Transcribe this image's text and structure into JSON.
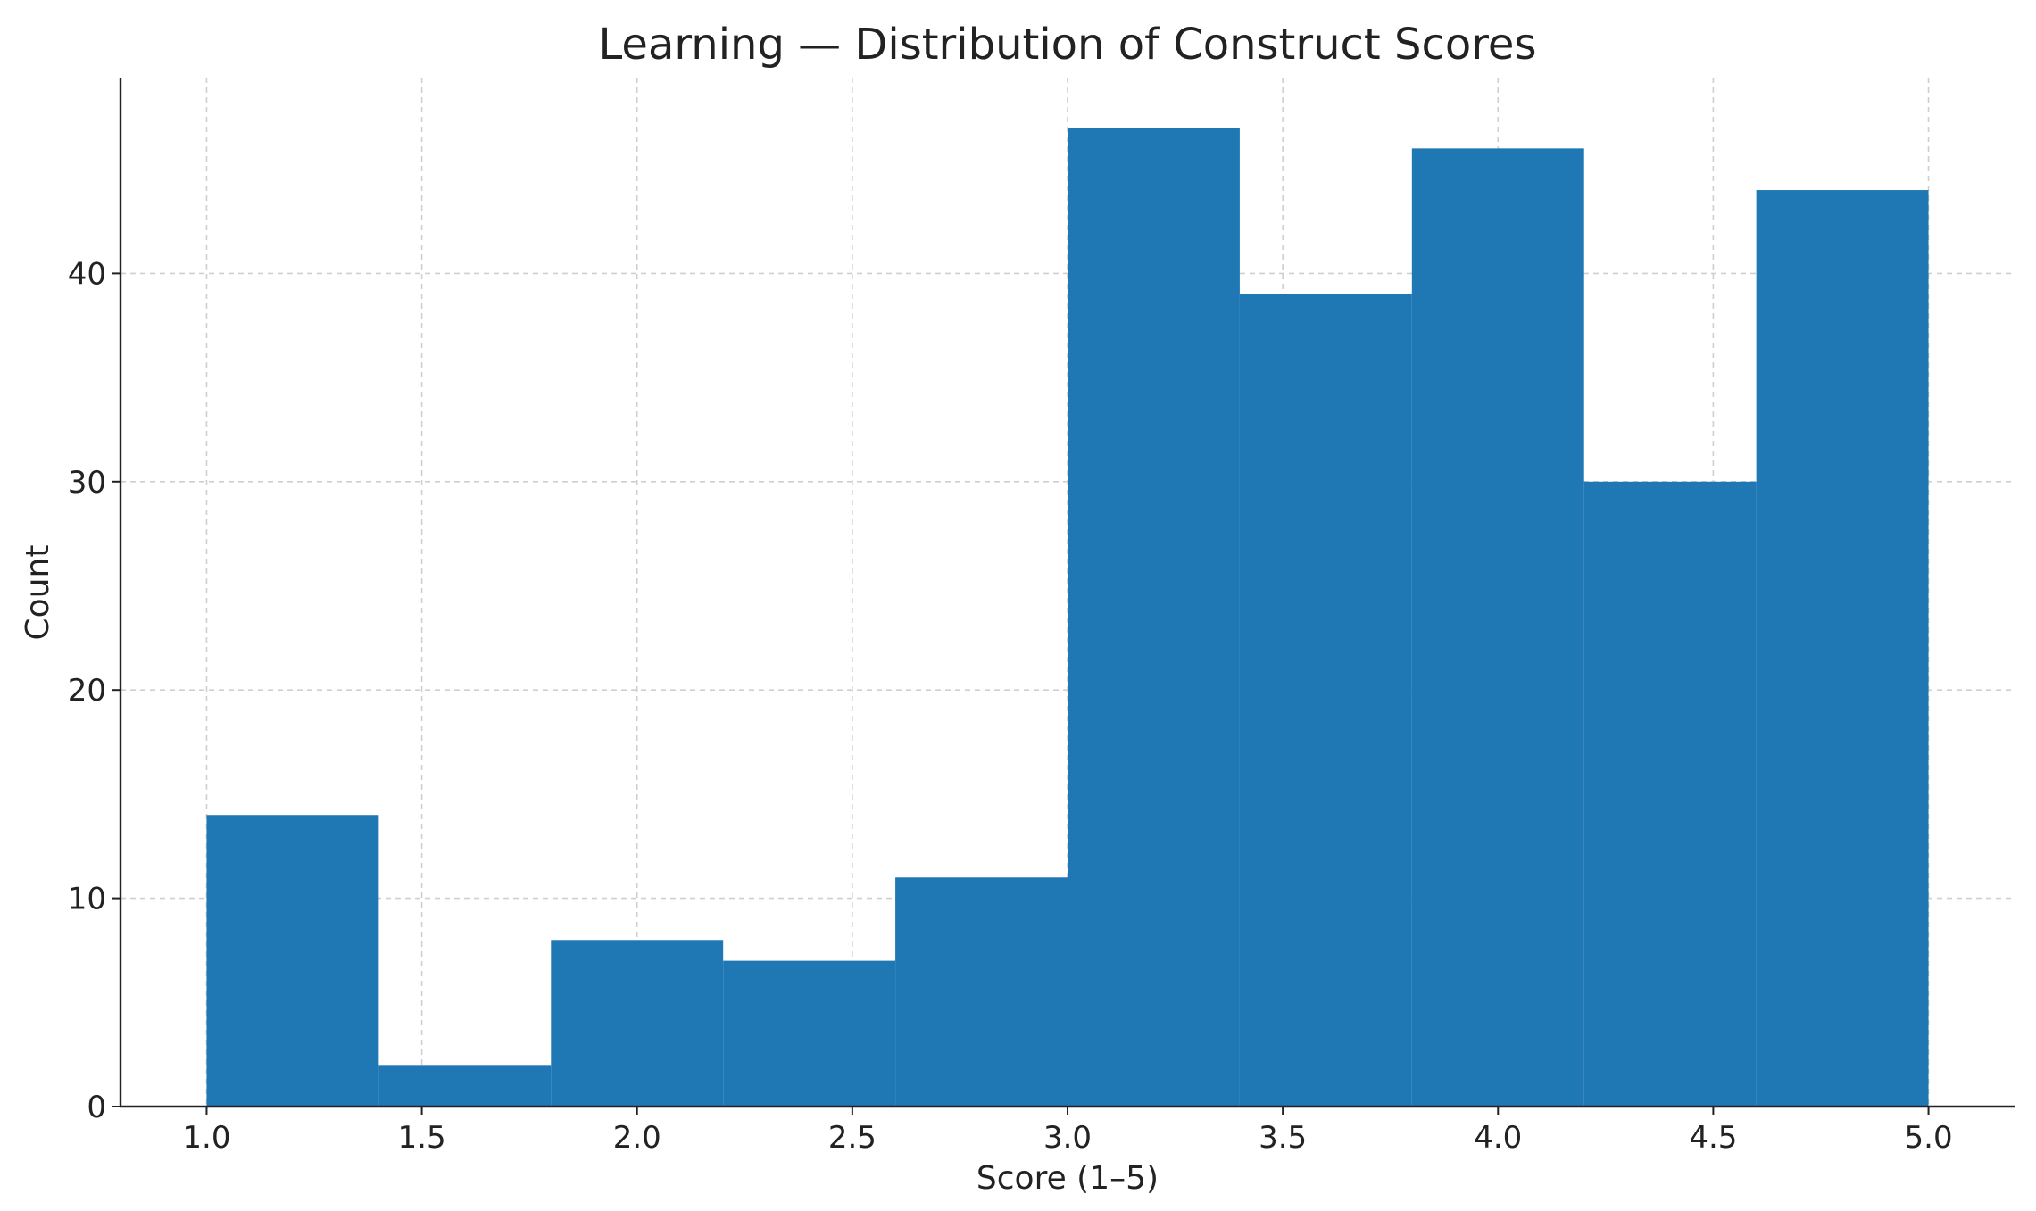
{
  "chart_data": {
    "type": "bar",
    "title": "Learning — Distribution of Construct Scores",
    "xlabel": "Score (1–5)",
    "ylabel": "Count",
    "bin_edges": [
      1.0,
      1.4,
      1.8,
      2.2,
      2.6,
      3.0,
      3.4,
      3.8,
      4.2,
      4.6,
      5.0
    ],
    "values": [
      14,
      2,
      8,
      7,
      11,
      47,
      39,
      46,
      30,
      44
    ],
    "xlim": [
      0.8,
      5.2
    ],
    "ylim": [
      0,
      49.4
    ],
    "xticks": [
      1.0,
      1.5,
      2.0,
      2.5,
      3.0,
      3.5,
      4.0,
      4.5,
      5.0
    ],
    "xtick_labels": [
      "1.0",
      "1.5",
      "2.0",
      "2.5",
      "3.0",
      "3.5",
      "4.0",
      "4.5",
      "5.0"
    ],
    "yticks": [
      0,
      10,
      20,
      30,
      40
    ],
    "ytick_labels": [
      "0",
      "10",
      "20",
      "30",
      "40"
    ],
    "grid": true,
    "bar_color": "#1f77b4"
  }
}
